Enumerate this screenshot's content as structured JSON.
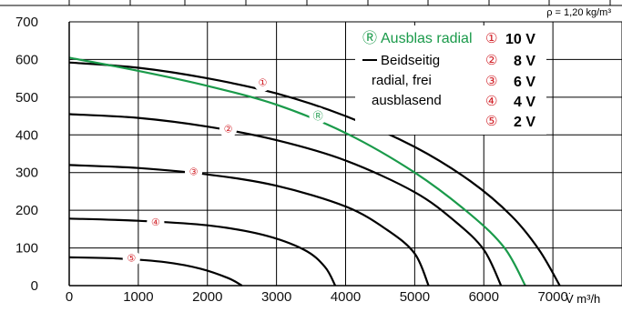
{
  "chart_data": {
    "type": "line",
    "xlabel": "V̇ m³/h",
    "ylabel": "",
    "xlim": [
      0,
      8000
    ],
    "ylim": [
      0,
      700
    ],
    "x_ticks": [
      0,
      1000,
      2000,
      3000,
      4000,
      5000,
      6000,
      7000
    ],
    "y_ticks": [
      0,
      100,
      200,
      300,
      400,
      500,
      600,
      700
    ],
    "grid": true,
    "density_note": "ρ = 1,20 kg/m³",
    "series": [
      {
        "name": "10 V",
        "marker": "①",
        "color": "#000000",
        "x": [
          0,
          1000,
          2000,
          3000,
          4000,
          5000,
          5800,
          6400,
          6800,
          7100
        ],
        "y": [
          592,
          578,
          550,
          510,
          450,
          368,
          278,
          185,
          95,
          0
        ]
      },
      {
        "name": "8 V",
        "marker": "②",
        "color": "#000000",
        "x": [
          0,
          1000,
          2000,
          3000,
          4000,
          5000,
          5600,
          6000,
          6250
        ],
        "y": [
          455,
          445,
          422,
          386,
          332,
          248,
          168,
          95,
          0
        ]
      },
      {
        "name": "6 V",
        "marker": "③",
        "color": "#000000",
        "x": [
          0,
          1000,
          2000,
          3000,
          4000,
          4600,
          5000,
          5200
        ],
        "y": [
          320,
          312,
          295,
          265,
          210,
          148,
          85,
          0
        ]
      },
      {
        "name": "4 V",
        "marker": "④",
        "color": "#000000",
        "x": [
          0,
          1000,
          2000,
          2800,
          3400,
          3700,
          3850
        ],
        "y": [
          178,
          172,
          160,
          135,
          95,
          50,
          0
        ]
      },
      {
        "name": "2 V",
        "marker": "⑤",
        "color": "#000000",
        "x": [
          0,
          700,
          1400,
          1900,
          2300,
          2500
        ],
        "y": [
          75,
          72,
          62,
          45,
          20,
          0
        ]
      },
      {
        "name": "Ausblas radial",
        "marker": "Ⓡ",
        "color": "#1a9a4a",
        "x": [
          0,
          1000,
          2000,
          3000,
          4000,
          5000,
          5800,
          6300,
          6600
        ],
        "y": [
          605,
          570,
          530,
          480,
          405,
          300,
          190,
          100,
          0
        ]
      }
    ],
    "legend": {
      "green_label": "Ausblas radial",
      "green_marker": "Ⓡ",
      "black_label_lines": [
        "Beidseitig",
        "radial, frei",
        "ausblasend"
      ],
      "voltages": [
        {
          "marker": "①",
          "label": "10 V"
        },
        {
          "marker": "②",
          "label": "8 V"
        },
        {
          "marker": "③",
          "label": "6 V"
        },
        {
          "marker": "④",
          "label": "4 V"
        },
        {
          "marker": "⑤",
          "label": "2 V"
        }
      ]
    },
    "curve_markers": [
      {
        "series": 0,
        "x": 2800,
        "y": 538
      },
      {
        "series": 1,
        "x": 2300,
        "y": 415
      },
      {
        "series": 2,
        "x": 1800,
        "y": 302
      },
      {
        "series": 3,
        "x": 1250,
        "y": 168
      },
      {
        "series": 4,
        "x": 900,
        "y": 72
      },
      {
        "series": 5,
        "x": 3600,
        "y": 450
      }
    ]
  }
}
